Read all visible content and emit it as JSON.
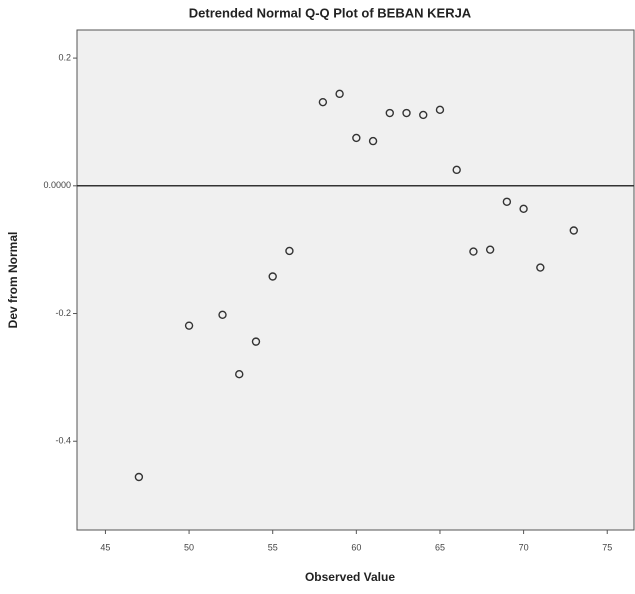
{
  "chart_data": {
    "type": "scatter",
    "title": "Detrended Normal Q-Q Plot of BEBAN KERJA",
    "x_label": "Observed Value",
    "y_label": "Dev from Normal",
    "series": [
      {
        "name": "BEBAN KERJA",
        "color": "#333333",
        "x": [
          47,
          50,
          52,
          53,
          54,
          55,
          56,
          58,
          59,
          60,
          61,
          62,
          63,
          64,
          65,
          66,
          67,
          68,
          69,
          70,
          71,
          73
        ],
        "values": [
          -0.456,
          -0.219,
          -0.202,
          -0.295,
          -0.244,
          -0.142,
          -0.102,
          0.131,
          0.144,
          0.075,
          0.07,
          0.114,
          0.114,
          0.111,
          0.119,
          0.025,
          -0.103,
          -0.1,
          -0.025,
          -0.036,
          -0.128,
          -0.07
        ]
      }
    ],
    "xlim": [
      43.3,
      76.6
    ],
    "xticks": [
      45,
      50,
      55,
      60,
      65,
      70,
      75
    ],
    "ylim": [
      -0.539,
      0.244
    ],
    "yticks": [
      0.2,
      {
        "value": 0,
        "label": "0.0000"
      },
      -0.2,
      -0.4
    ],
    "reference_line": 0
  }
}
